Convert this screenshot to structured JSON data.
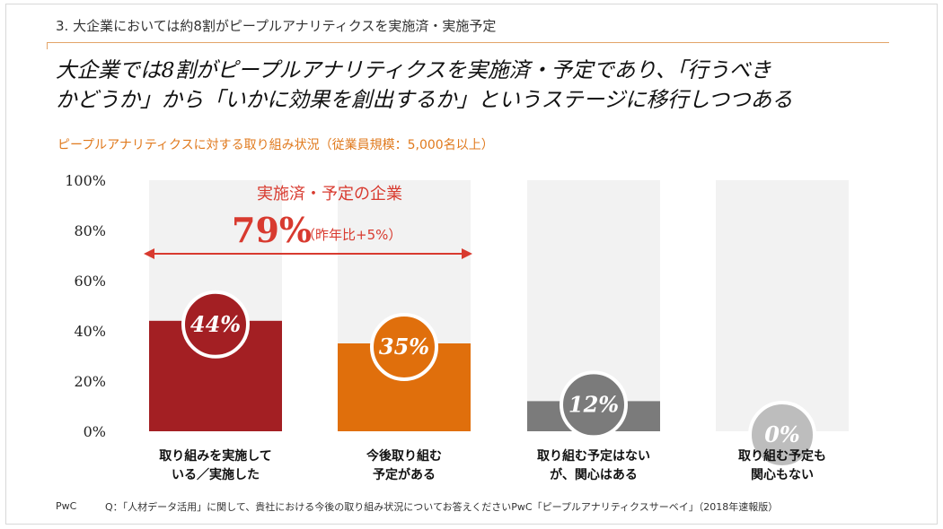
{
  "header": {
    "section_title": "3. 大企業においては約8割がピープルアナリティクスを実施済・実施予定"
  },
  "headline": {
    "line1": "大企業では8割がピープルアナリティクスを実施済・予定であり、「行うべき",
    "line2": "かどうか」から「いかに効果を創出するか」というステージに移行しつつある"
  },
  "colors": {
    "accent_orange": "#e07a1e",
    "dark_red": "#a31f23",
    "orange": "#e06f0c",
    "gray": "#7b7b7b",
    "light_gray": "#bdbdbd",
    "track": "#f2f2f2",
    "callout_red": "#d83a2f"
  },
  "chart_data": {
    "type": "bar",
    "title": "ピープルアナリティクスに対する取り組み状況（従業員規模：5,000名以上）",
    "categories": [
      [
        "取り組みを実施して",
        "いる／実施した"
      ],
      [
        "今後取り組む",
        "予定がある"
      ],
      [
        "取り組む予定はない",
        "が、関心はある"
      ],
      [
        "取り組む予定も",
        "関心もない"
      ]
    ],
    "values": [
      44,
      35,
      12,
      0
    ],
    "value_labels": [
      "44%",
      "35%",
      "12%",
      "0%"
    ],
    "bar_colors": [
      "#a31f23",
      "#e06f0c",
      "#7b7b7b",
      "#bdbdbd"
    ],
    "ylim": [
      0,
      100
    ],
    "yticks": [
      0,
      20,
      40,
      60,
      80,
      100
    ],
    "ytick_labels": [
      "0%",
      "20%",
      "40%",
      "60%",
      "80%",
      "100%"
    ],
    "xlabel": "",
    "ylabel": "",
    "grid": false,
    "background_track": true,
    "annotation": {
      "label": "実施済・予定の企業",
      "value": "79%",
      "note": "（昨年比+5%）",
      "span": [
        0,
        1
      ]
    }
  },
  "footer": {
    "source": "PwC",
    "note": "Q：「人材データ活用」に関して、貴社における今後の取り組み状況についてお答えくださいPwC「ピープルアナリティクスサーベイ」（2018年速報版）"
  }
}
